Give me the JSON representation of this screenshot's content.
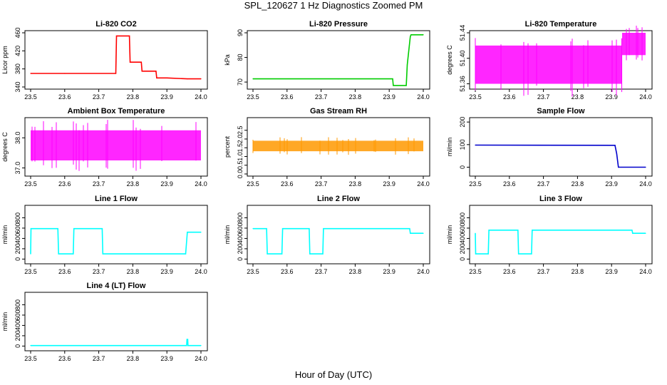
{
  "page": {
    "title": "SPL_120627  1 Hz Diagnostics Zoomed PM",
    "xlabel": "Hour of Day (UTC)"
  },
  "chart_data": [
    {
      "type": "line",
      "title": "Li-820 CO2",
      "ylabel": "Licor ppm",
      "color": "#ff0000",
      "xlim": [
        23.5,
        24.0
      ],
      "ylim": [
        340,
        460
      ],
      "xticks": [
        "23.5",
        "23.6",
        "23.7",
        "23.8",
        "23.9",
        "24.0"
      ],
      "yticks": [
        340,
        380,
        420,
        460
      ],
      "ytick_labels": [
        "340",
        "380",
        "420",
        "460"
      ],
      "x": [
        23.5,
        23.6,
        23.75,
        23.752,
        23.79,
        23.792,
        23.825,
        23.827,
        23.868,
        23.87,
        23.9,
        23.96,
        24.0
      ],
      "y": [
        370,
        370,
        370,
        453,
        453,
        395,
        395,
        375,
        375,
        360,
        360,
        358,
        358
      ]
    },
    {
      "type": "line",
      "title": "Li-820 Pressure",
      "ylabel": "kPa",
      "color": "#00cc00",
      "xlim": [
        23.5,
        24.0
      ],
      "ylim": [
        68,
        90
      ],
      "xticks": [
        "23.5",
        "23.6",
        "23.7",
        "23.8",
        "23.9",
        "24.0"
      ],
      "yticks": [
        70,
        80,
        90
      ],
      "ytick_labels": [
        "70",
        "80",
        "90"
      ],
      "x": [
        23.5,
        23.75,
        23.91,
        23.912,
        23.95,
        23.953,
        23.962,
        23.964,
        24.0
      ],
      "y": [
        71.3,
        71.3,
        71.3,
        68.6,
        68.6,
        77,
        88.5,
        89.2,
        89.2
      ]
    },
    {
      "type": "line",
      "title": "Li-820 Temperature",
      "ylabel": "degrees C",
      "color": "#ff00ff",
      "xlim": [
        23.5,
        24.0
      ],
      "ylim": [
        51.355,
        51.44
      ],
      "xticks": [
        "23.5",
        "23.6",
        "23.7",
        "23.8",
        "23.9",
        "24.0"
      ],
      "yticks": [
        51.36,
        51.4,
        51.44
      ],
      "ytick_labels": [
        "51.36",
        "51.40",
        "51.44"
      ],
      "x": [
        23.5,
        23.93,
        23.931,
        24.0
      ],
      "y_low": [
        51.36,
        51.36,
        51.405,
        51.405
      ],
      "y_high": [
        51.42,
        51.42,
        51.44,
        51.44
      ]
    },
    {
      "type": "line",
      "title": "Ambient Box Temperature",
      "ylabel": "degrees C",
      "color": "#ff00ff",
      "xlim": [
        23.5,
        24.0
      ],
      "ylim": [
        36.8,
        38.6
      ],
      "xticks": [
        "23.5",
        "23.6",
        "23.7",
        "23.8",
        "23.9",
        "24.0"
      ],
      "yticks": [
        37.0,
        38.0
      ],
      "ytick_labels": [
        "37.0",
        "38.0"
      ],
      "x": [
        23.5,
        24.0
      ],
      "y_low": [
        37.25,
        37.25
      ],
      "y_high": [
        38.25,
        38.25
      ]
    },
    {
      "type": "line",
      "title": "Gas Stream RH",
      "ylabel": "percent",
      "color": "#ff9900",
      "xlim": [
        23.5,
        24.0
      ],
      "ylim": [
        0,
        3.1
      ],
      "xticks": [
        "23.5",
        "23.6",
        "23.7",
        "23.8",
        "23.9",
        "24.0"
      ],
      "yticks": [
        0.0,
        0.5,
        1.0,
        1.5,
        2.0,
        2.5
      ],
      "ytick_labels": [
        "0.0",
        "0.5",
        "1.0",
        "1.5",
        "2.0",
        "2.5"
      ],
      "x": [
        23.5,
        24.0
      ],
      "y_low": [
        1.3,
        1.3
      ],
      "y_high": [
        1.9,
        1.9
      ]
    },
    {
      "type": "line",
      "title": "Sample Flow",
      "ylabel": "ml/min",
      "color": "#0000cc",
      "xlim": [
        23.5,
        24.0
      ],
      "ylim": [
        -30,
        210
      ],
      "xticks": [
        "23.5",
        "23.6",
        "23.7",
        "23.8",
        "23.9",
        "24.0"
      ],
      "yticks": [
        0,
        100,
        200
      ],
      "ytick_labels": [
        "0",
        "100",
        "200"
      ],
      "x": [
        23.5,
        23.91,
        23.915,
        23.92,
        24.0
      ],
      "y": [
        98,
        97,
        60,
        0,
        0
      ]
    },
    {
      "type": "line",
      "title": "Line 1 Flow",
      "ylabel": "ml/min",
      "color": "#00ffff",
      "xlim": [
        23.5,
        24.0
      ],
      "ylim": [
        -50,
        1000
      ],
      "xticks": [
        "23.5",
        "23.6",
        "23.7",
        "23.8",
        "23.9",
        "24.0"
      ],
      "yticks": [
        0,
        200,
        400,
        600,
        800
      ],
      "ytick_labels": [
        "0",
        "200",
        "400",
        "600",
        "800"
      ],
      "x": [
        23.5,
        23.501,
        23.58,
        23.582,
        23.625,
        23.627,
        23.71,
        23.712,
        23.955,
        23.96,
        24.0
      ],
      "y": [
        100,
        590,
        590,
        100,
        100,
        590,
        590,
        100,
        100,
        520,
        520
      ]
    },
    {
      "type": "line",
      "title": "Line 2 Flow",
      "ylabel": "ml/min",
      "color": "#00ffff",
      "xlim": [
        23.5,
        24.0
      ],
      "ylim": [
        -50,
        1000
      ],
      "xticks": [
        "23.5",
        "23.6",
        "23.7",
        "23.8",
        "23.9",
        "24.0"
      ],
      "yticks": [
        0,
        200,
        400,
        600,
        800
      ],
      "ytick_labels": [
        "0",
        "200",
        "400",
        "600",
        "800"
      ],
      "x": [
        23.5,
        23.54,
        23.542,
        23.585,
        23.587,
        23.665,
        23.667,
        23.705,
        23.707,
        23.96,
        23.962,
        24.0
      ],
      "y": [
        590,
        590,
        100,
        100,
        590,
        590,
        100,
        100,
        590,
        590,
        500,
        500
      ]
    },
    {
      "type": "line",
      "title": "Line 3 Flow",
      "ylabel": "ml/min",
      "color": "#00ffff",
      "xlim": [
        23.5,
        24.0
      ],
      "ylim": [
        -50,
        1000
      ],
      "xticks": [
        "23.5",
        "23.6",
        "23.7",
        "23.8",
        "23.9",
        "24.0"
      ],
      "yticks": [
        0,
        200,
        400,
        600,
        800
      ],
      "ytick_labels": [
        "0",
        "200",
        "400",
        "600",
        "800"
      ],
      "x": [
        23.5,
        23.501,
        23.538,
        23.54,
        23.625,
        23.627,
        23.665,
        23.667,
        23.96,
        23.962,
        24.0
      ],
      "y": [
        500,
        100,
        100,
        560,
        560,
        100,
        100,
        560,
        560,
        500,
        500
      ]
    },
    {
      "type": "line",
      "title": "Line 4 (LT) Flow",
      "ylabel": "ml/min",
      "color": "#00ffff",
      "xlim": [
        23.5,
        24.0
      ],
      "ylim": [
        -50,
        1000
      ],
      "xticks": [
        "23.5",
        "23.6",
        "23.7",
        "23.8",
        "23.9",
        "24.0"
      ],
      "yticks": [
        0,
        200,
        400,
        600,
        800
      ],
      "ytick_labels": [
        "0",
        "200",
        "400",
        "600",
        "800"
      ],
      "x": [
        23.5,
        23.958,
        23.959,
        23.961,
        23.962,
        24.0
      ],
      "y": [
        10,
        10,
        130,
        130,
        10,
        10
      ]
    }
  ]
}
